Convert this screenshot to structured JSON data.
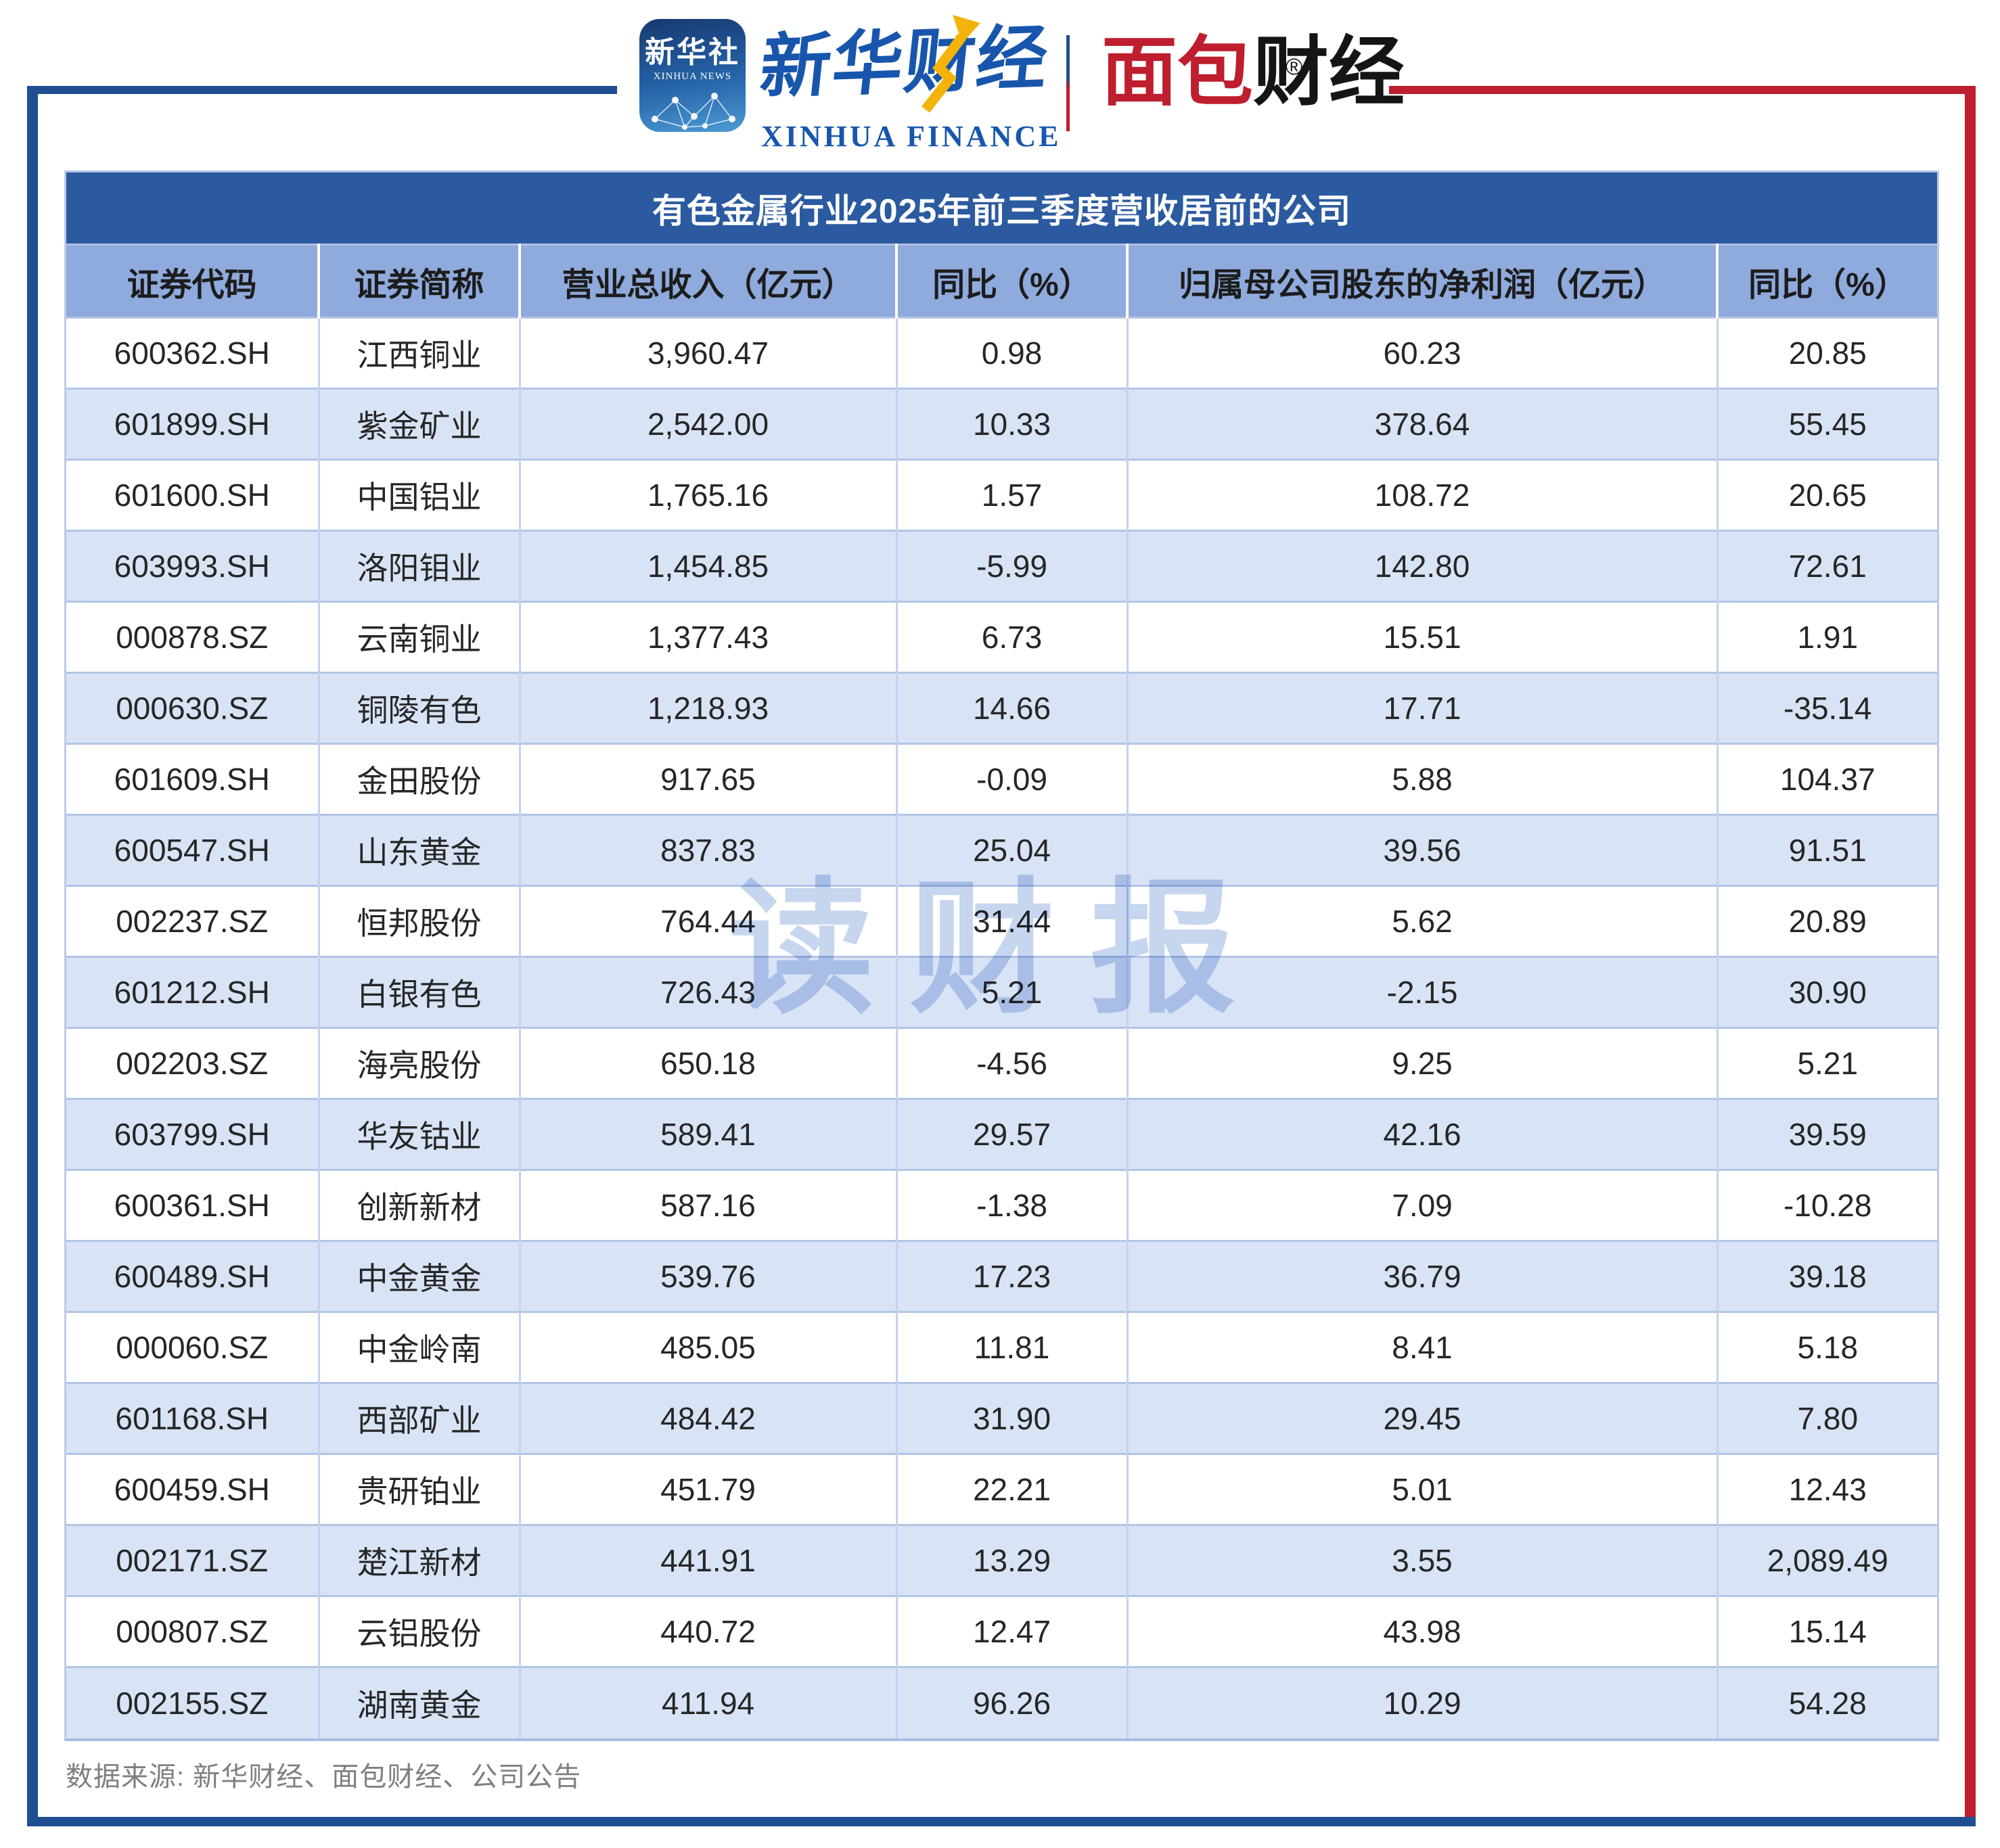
{
  "brand": {
    "xinhua_icon": {
      "title": "新华社",
      "subtitle": "XINHUA NEWS"
    },
    "xinhua_finance": {
      "cn": "新华财经",
      "en": "XINHUA FINANCE"
    },
    "mianbao_finance": {
      "part_red": "面包",
      "part_black": "财经",
      "registered_mark": "®"
    }
  },
  "chart_data": {
    "type": "table",
    "title": "有色金属行业2025年前三季度营收居前的公司",
    "columns": [
      "证券代码",
      "证券简称",
      "营业总收入（亿元）",
      "同比（%）",
      "归属母公司股东的净利润（亿元）",
      "同比（%）"
    ],
    "rows": [
      [
        "600362.SH",
        "江西铜业",
        "3,960.47",
        "0.98",
        "60.23",
        "20.85"
      ],
      [
        "601899.SH",
        "紫金矿业",
        "2,542.00",
        "10.33",
        "378.64",
        "55.45"
      ],
      [
        "601600.SH",
        "中国铝业",
        "1,765.16",
        "1.57",
        "108.72",
        "20.65"
      ],
      [
        "603993.SH",
        "洛阳钼业",
        "1,454.85",
        "-5.99",
        "142.80",
        "72.61"
      ],
      [
        "000878.SZ",
        "云南铜业",
        "1,377.43",
        "6.73",
        "15.51",
        "1.91"
      ],
      [
        "000630.SZ",
        "铜陵有色",
        "1,218.93",
        "14.66",
        "17.71",
        "-35.14"
      ],
      [
        "601609.SH",
        "金田股份",
        "917.65",
        "-0.09",
        "5.88",
        "104.37"
      ],
      [
        "600547.SH",
        "山东黄金",
        "837.83",
        "25.04",
        "39.56",
        "91.51"
      ],
      [
        "002237.SZ",
        "恒邦股份",
        "764.44",
        "31.44",
        "5.62",
        "20.89"
      ],
      [
        "601212.SH",
        "白银有色",
        "726.43",
        "5.21",
        "-2.15",
        "30.90"
      ],
      [
        "002203.SZ",
        "海亮股份",
        "650.18",
        "-4.56",
        "9.25",
        "5.21"
      ],
      [
        "603799.SH",
        "华友钴业",
        "589.41",
        "29.57",
        "42.16",
        "39.59"
      ],
      [
        "600361.SH",
        "创新新材",
        "587.16",
        "-1.38",
        "7.09",
        "-10.28"
      ],
      [
        "600489.SH",
        "中金黄金",
        "539.76",
        "17.23",
        "36.79",
        "39.18"
      ],
      [
        "000060.SZ",
        "中金岭南",
        "485.05",
        "11.81",
        "8.41",
        "5.18"
      ],
      [
        "601168.SH",
        "西部矿业",
        "484.42",
        "31.90",
        "29.45",
        "7.80"
      ],
      [
        "600459.SH",
        "贵研铂业",
        "451.79",
        "22.21",
        "5.01",
        "12.43"
      ],
      [
        "002171.SZ",
        "楚江新材",
        "441.91",
        "13.29",
        "3.55",
        "2,089.49"
      ],
      [
        "000807.SZ",
        "云铝股份",
        "440.72",
        "12.47",
        "43.98",
        "15.14"
      ],
      [
        "002155.SZ",
        "湖南黄金",
        "411.94",
        "96.26",
        "10.29",
        "54.28"
      ]
    ]
  },
  "watermark": "读财报",
  "footer": "数据来源: 新华财经、面包财经、公司公告",
  "colors": {
    "frame_blue": "#1f4e91",
    "frame_red": "#be1e2d",
    "title_bg": "#2b5aa0",
    "header_bg": "#8faadc",
    "stripe_bg": "#d9e3f6",
    "brand_blue": "#1856ad",
    "brand_gold": "#f3b30b",
    "watermark_color": "#c6d6ef",
    "footer_gray": "#7f7f7f"
  }
}
